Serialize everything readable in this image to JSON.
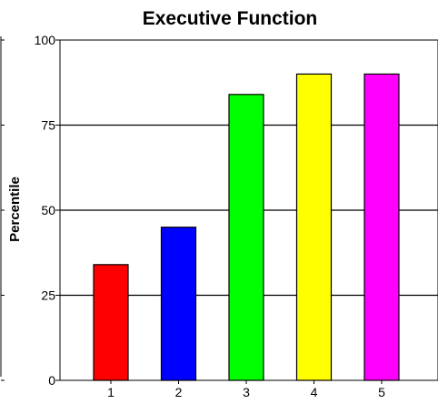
{
  "chart_data": {
    "type": "bar",
    "title": "Executive Function",
    "xlabel": "",
    "ylabel": "Percentile",
    "ylim": [
      0,
      100
    ],
    "yticks": [
      0,
      25,
      50,
      75,
      100
    ],
    "grid": true,
    "categories": [
      "1",
      "2",
      "3",
      "4",
      "5"
    ],
    "values": [
      34,
      45,
      84,
      90,
      90
    ],
    "colors": [
      "#ff0000",
      "#0000ff",
      "#00ff00",
      "#ffff00",
      "#ff00ff"
    ]
  }
}
